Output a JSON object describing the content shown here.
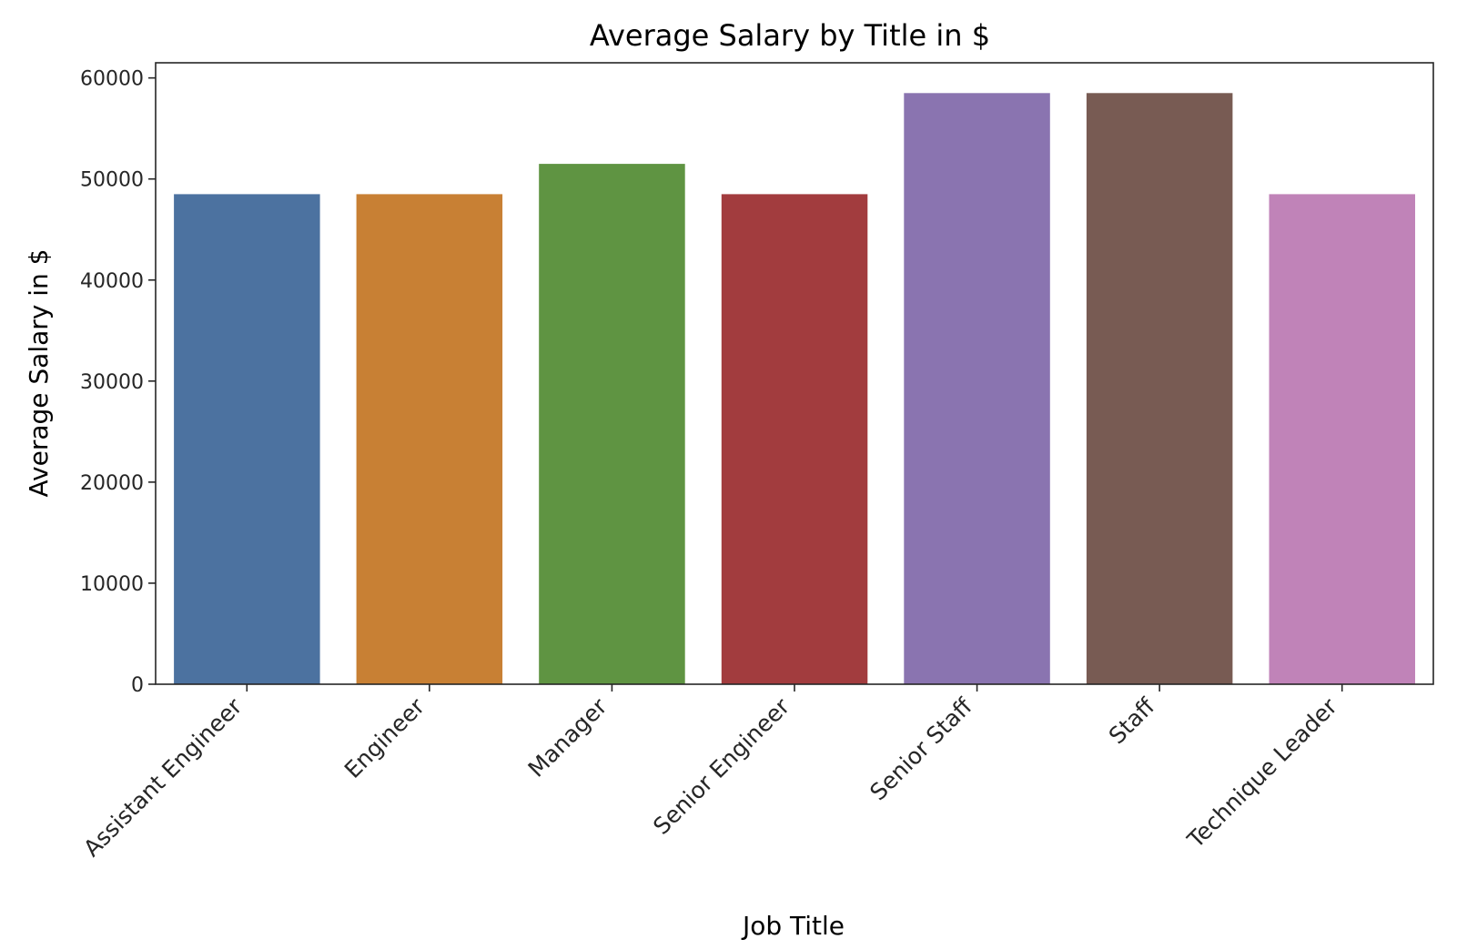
{
  "chart_data": {
    "type": "bar",
    "title": "Average Salary by Title in $",
    "xlabel": "Job Title",
    "ylabel": "Average Salary in $",
    "categories": [
      "Assistant Engineer",
      "Engineer",
      "Manager",
      "Senior Engineer",
      "Senior Staff",
      "Staff",
      "Technique Leader"
    ],
    "values": [
      48500,
      48500,
      51500,
      48500,
      58500,
      58500,
      48500
    ],
    "colors": [
      "#4c72a0",
      "#c88034",
      "#5f9442",
      "#a23c3e",
      "#8a74b0",
      "#785b53",
      "#c083b8"
    ],
    "ylim": [
      0,
      61500
    ],
    "yticks": [
      0,
      10000,
      20000,
      30000,
      40000,
      50000,
      60000
    ],
    "grid": false,
    "legend": "none"
  }
}
